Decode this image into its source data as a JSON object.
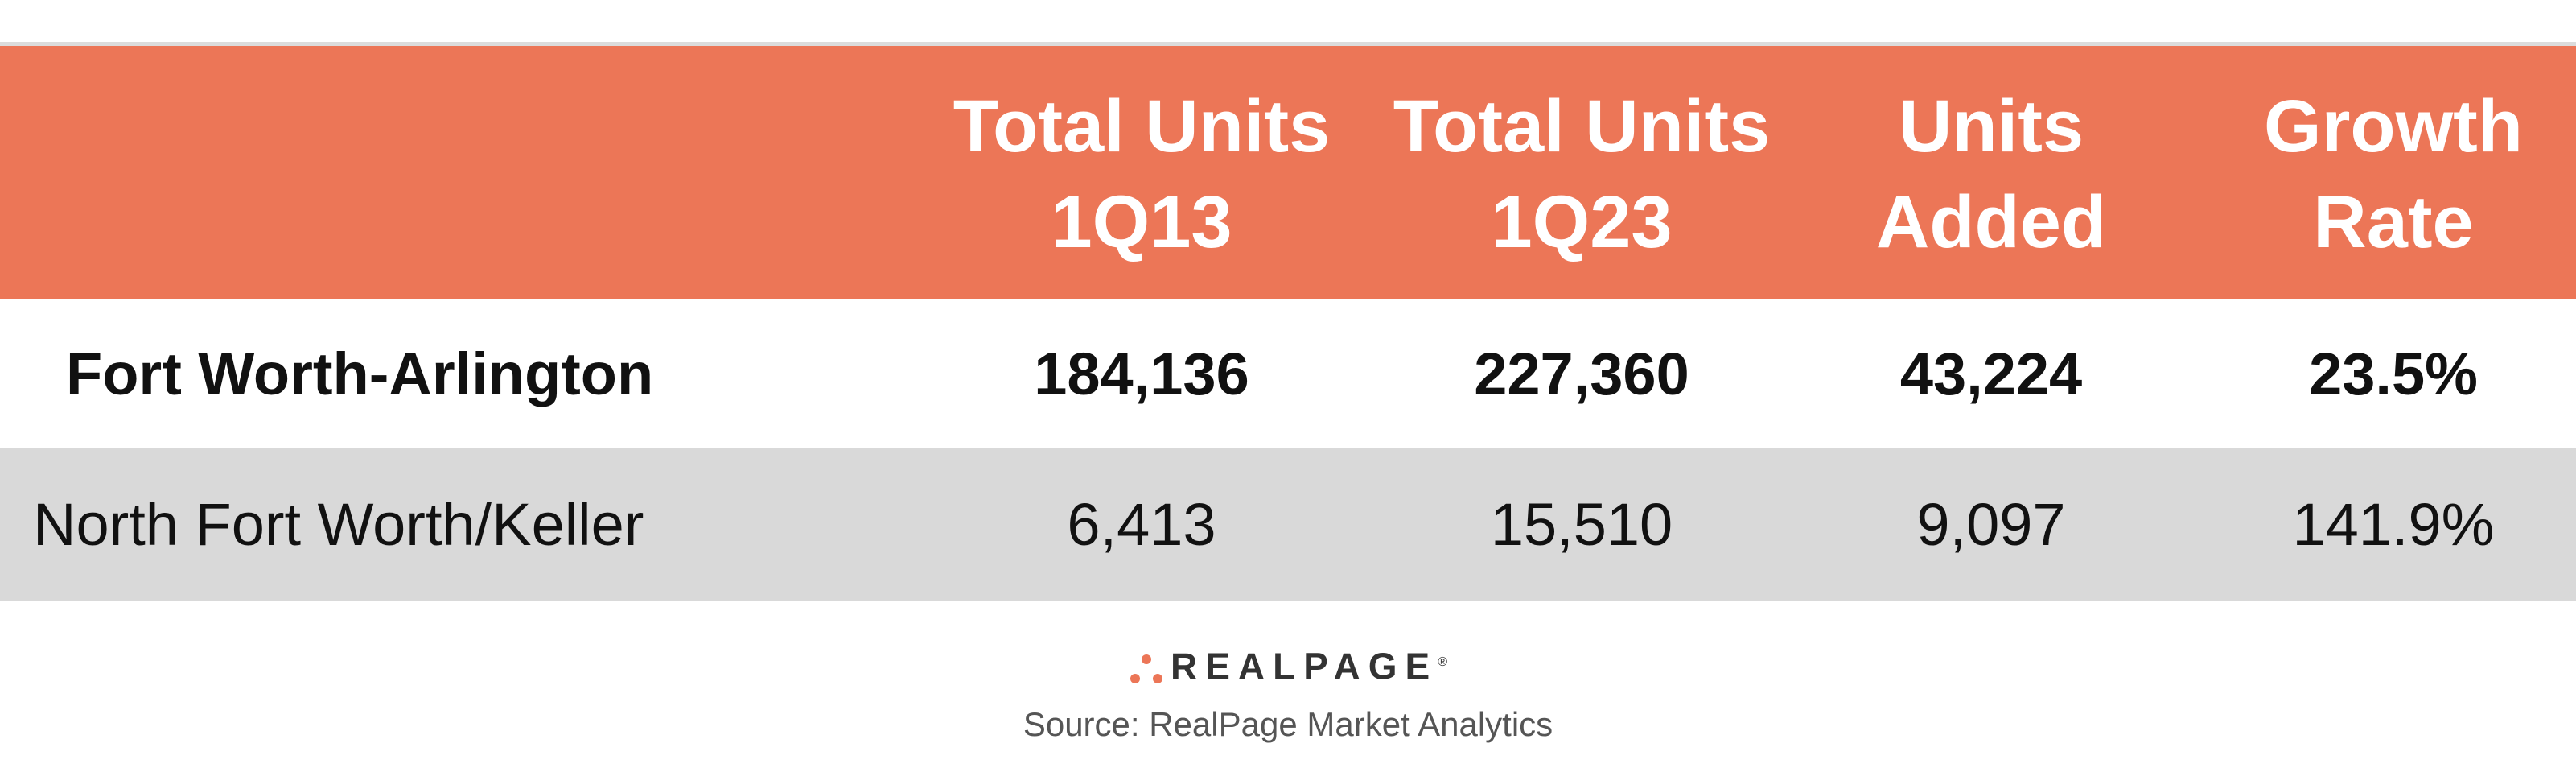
{
  "table": {
    "columns": [
      [
        "Total Units",
        "1Q13"
      ],
      [
        "Total Units",
        "1Q23"
      ],
      [
        "Units",
        "Added"
      ],
      [
        "Growth",
        "Rate"
      ]
    ],
    "rows": [
      [
        "Fort Worth-Arlington",
        "184,136",
        "227,360",
        "43,224",
        "23.5%"
      ],
      [
        "North Fort Worth/Keller",
        "6,413",
        "15,510",
        "9,097",
        "141.9%"
      ]
    ]
  },
  "logo": {
    "text": "REALPAGE",
    "mark": "®"
  },
  "source": "Source: RealPage Market Analytics"
}
